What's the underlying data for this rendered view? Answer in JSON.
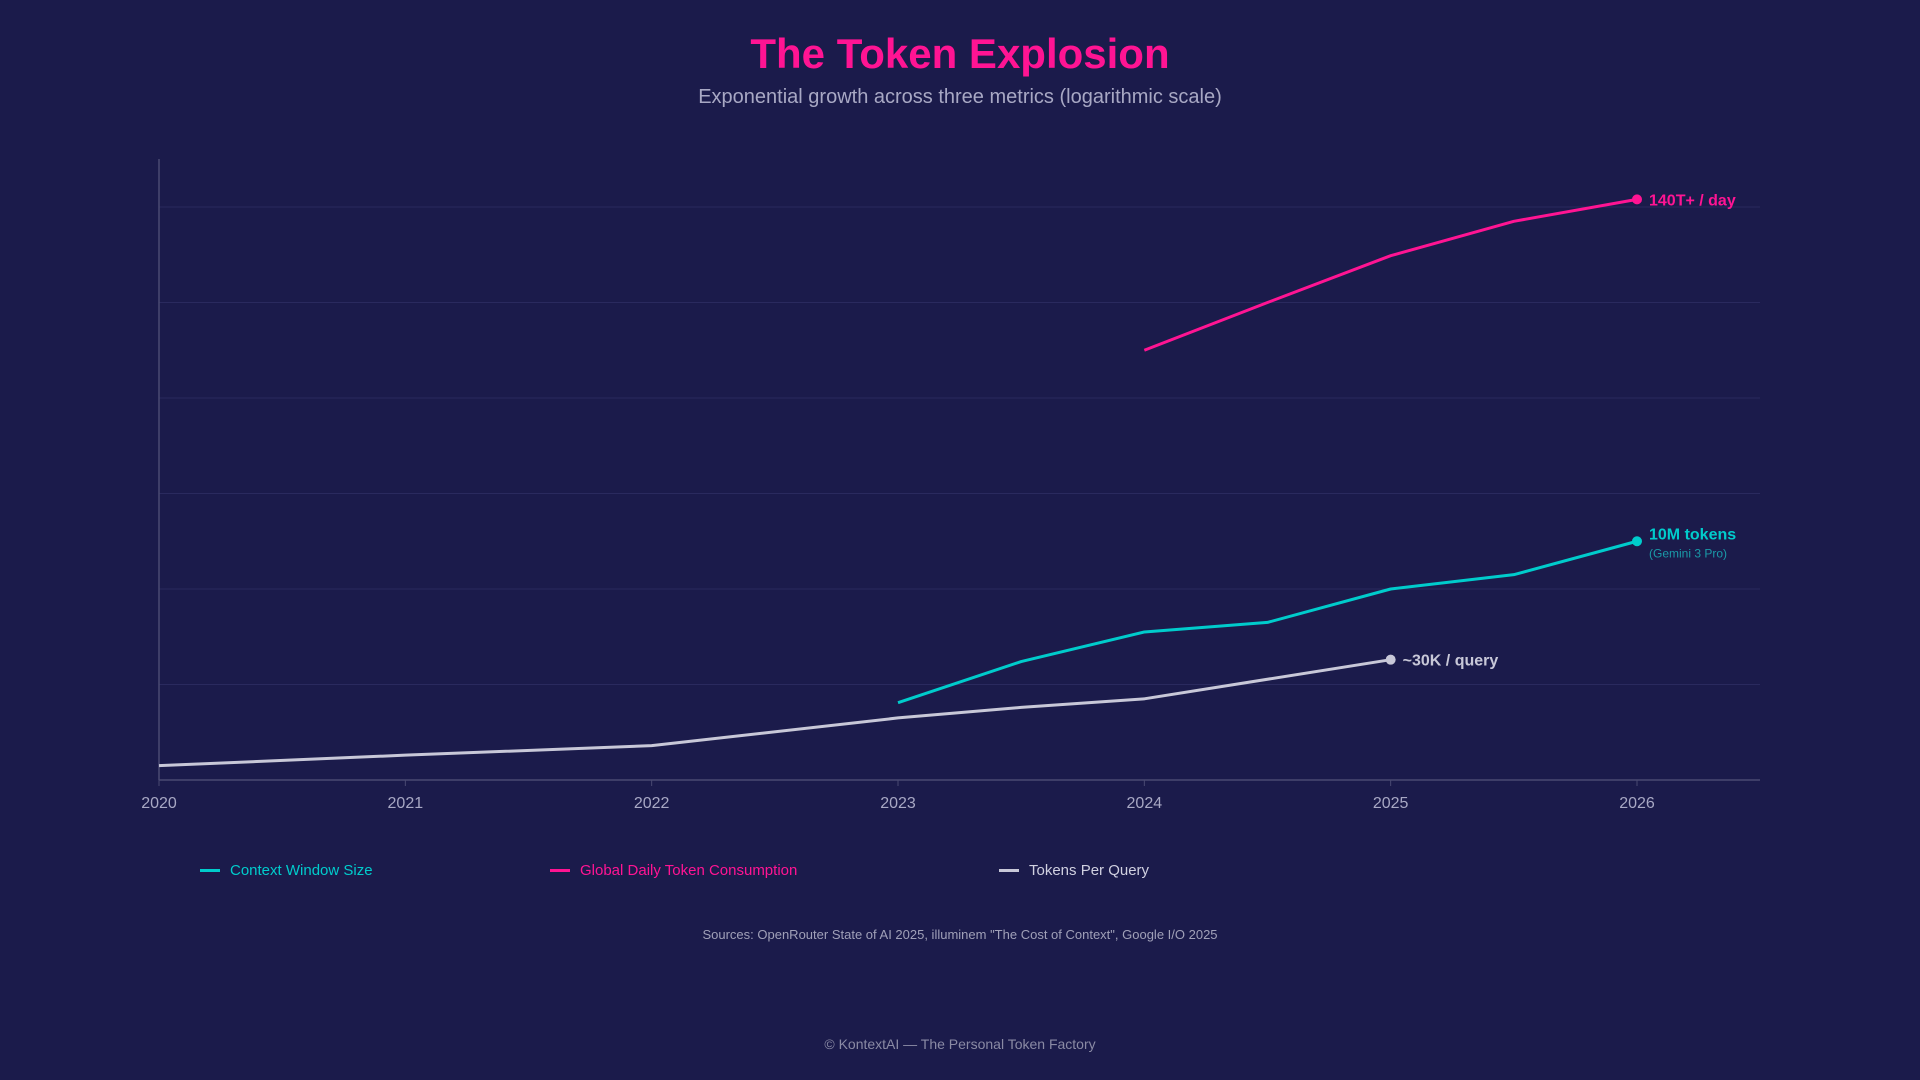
{
  "header": {
    "title": "The Token Explosion",
    "subtitle": "Exponential growth across three metrics (logarithmic scale)"
  },
  "chart_data": {
    "type": "line",
    "title": "The Token Explosion",
    "subtitle": "Exponential growth across three metrics (logarithmic scale)",
    "xlabel": "",
    "ylabel": "",
    "y_scale": "log",
    "y_note": "y values are relative log levels (gridline steps); no y tick labels printed",
    "xlim": [
      2020,
      2026.5
    ],
    "ylim": [
      0,
      6.5
    ],
    "x_ticks": [
      "2020",
      "2021",
      "2022",
      "2023",
      "2024",
      "2025",
      "2026"
    ],
    "grid": "horizontal",
    "legend_placement": "bottom",
    "series": [
      {
        "name": "Context Window Size",
        "color": "#00cccc",
        "x": [
          2023,
          2023.5,
          2024,
          2024.5,
          2025,
          2025.5,
          2026
        ],
        "y": [
          0.81,
          1.24,
          1.55,
          1.65,
          2.0,
          2.15,
          2.5
        ],
        "end_label": "10M tokens",
        "end_sublabel": "(Gemini 3 Pro)"
      },
      {
        "name": "Global Daily Token Consumption",
        "color": "#ff1493",
        "x": [
          2024,
          2024.5,
          2025,
          2025.5,
          2026
        ],
        "y": [
          4.5,
          5.0,
          5.49,
          5.85,
          6.08
        ],
        "end_label": "140T+ / day"
      },
      {
        "name": "Tokens Per Query",
        "color": "#c8c8d8",
        "x": [
          2020,
          2021,
          2022,
          2023,
          2023.5,
          2024,
          2025
        ],
        "y": [
          0.15,
          0.26,
          0.36,
          0.65,
          0.76,
          0.85,
          1.26
        ],
        "end_label": "~30K / query"
      }
    ]
  },
  "sources": "Sources: OpenRouter State of AI 2025, illuminem \"The Cost of Context\", Google I/O 2025",
  "footer": "© KontextAI — The Personal Token Factory"
}
